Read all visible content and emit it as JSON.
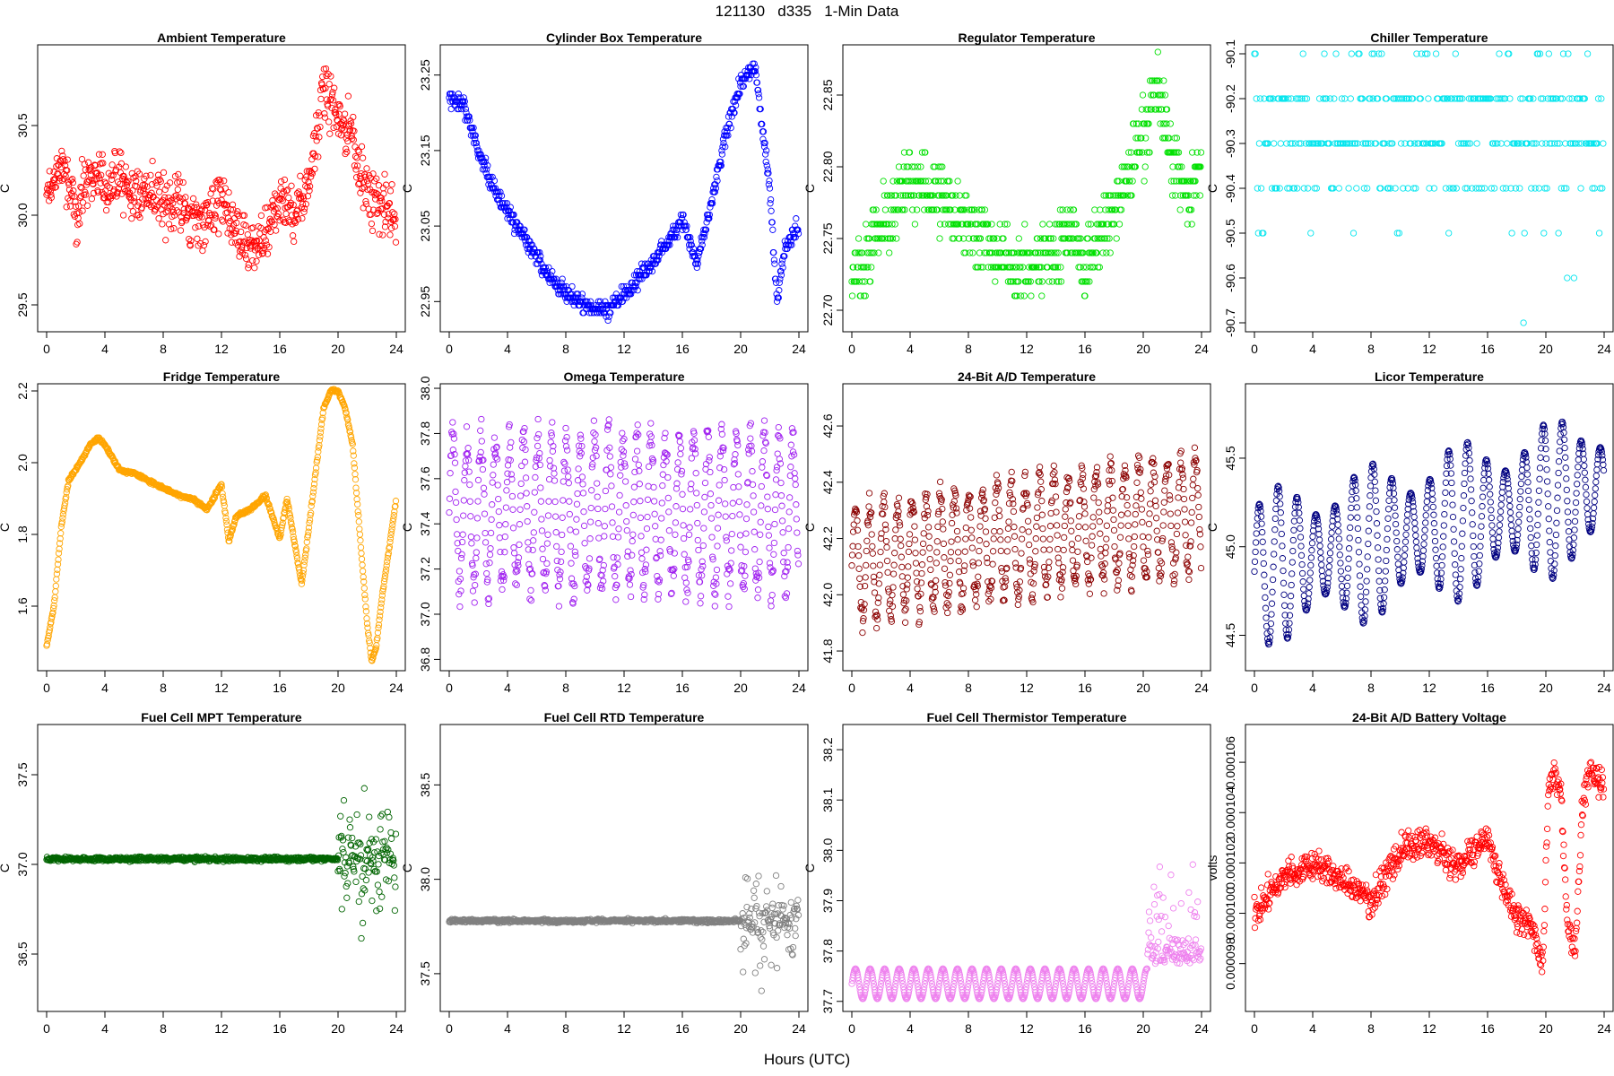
{
  "figure": {
    "suptitle": "121130   d335   1-Min Data",
    "xlabel": "Hours (UTC)"
  },
  "chart_data": [
    {
      "type": "scatter",
      "title": "Ambient Temperature",
      "ylabel": "C",
      "color": "#ff0000",
      "ylim": [
        29.35,
        30.95
      ],
      "yticks": [
        29.5,
        30.0,
        30.5
      ],
      "xlim": [
        0,
        24
      ],
      "xticks": [
        0,
        4,
        8,
        12,
        16,
        20,
        24
      ],
      "kind": "noisy",
      "x": [
        0,
        1,
        2,
        3,
        4,
        5,
        6,
        7,
        8,
        9,
        10,
        11,
        12,
        13,
        14,
        15,
        16,
        17,
        18,
        19,
        20,
        21,
        22,
        23,
        24
      ],
      "values": [
        30.1,
        30.3,
        30.0,
        30.25,
        30.15,
        30.2,
        30.1,
        30.15,
        30.05,
        30.1,
        29.95,
        30.0,
        30.1,
        29.9,
        29.8,
        29.85,
        30.1,
        30.0,
        30.2,
        30.7,
        30.55,
        30.45,
        30.1,
        30.05,
        30.0
      ],
      "spread": 0.22
    },
    {
      "type": "scatter",
      "title": "Cylinder Box Temperature",
      "ylabel": "C",
      "color": "#0000ff",
      "ylim": [
        22.91,
        23.29
      ],
      "yticks": [
        22.95,
        23.05,
        23.15,
        23.25
      ],
      "xlim": [
        0,
        24
      ],
      "xticks": [
        0,
        4,
        8,
        12,
        16,
        20,
        24
      ],
      "kind": "dense",
      "x": [
        0,
        1,
        2,
        3,
        4,
        5,
        6,
        7,
        8,
        9,
        10,
        11,
        12,
        13,
        14,
        15,
        16,
        17,
        18,
        19,
        20,
        21,
        22,
        22.5,
        23,
        24
      ],
      "values": [
        23.22,
        23.21,
        23.15,
        23.1,
        23.07,
        23.04,
        23.01,
        22.98,
        22.96,
        22.95,
        22.94,
        22.94,
        22.96,
        22.98,
        23.0,
        23.03,
        23.06,
        23.0,
        23.08,
        23.17,
        23.24,
        23.26,
        23.1,
        22.95,
        23.02,
        23.05
      ],
      "spread": 0.01
    },
    {
      "type": "scatter",
      "title": "Regulator Temperature",
      "ylabel": "C",
      "color": "#00e000",
      "ylim": [
        22.685,
        22.885
      ],
      "yticks": [
        22.7,
        22.75,
        22.8,
        22.85
      ],
      "xlim": [
        0,
        24
      ],
      "xticks": [
        0,
        4,
        8,
        12,
        16,
        20,
        24
      ],
      "kind": "quantized",
      "step": 0.01,
      "x": [
        0,
        2,
        4,
        6,
        8,
        10,
        12,
        14,
        15,
        16,
        18,
        20,
        21,
        22,
        23,
        24
      ],
      "values": [
        22.72,
        22.76,
        22.79,
        22.78,
        22.76,
        22.74,
        22.73,
        22.74,
        22.76,
        22.73,
        22.77,
        22.82,
        22.86,
        22.8,
        22.78,
        22.8
      ],
      "spread": 0.02
    },
    {
      "type": "scatter",
      "title": "Chiller Temperature",
      "ylabel": "C",
      "color": "#00e5ee",
      "ylim": [
        -90.72,
        -90.08
      ],
      "yticks": [
        -90.7,
        -90.6,
        -90.5,
        -90.4,
        -90.3,
        -90.2,
        -90.1
      ],
      "xlim": [
        0,
        24
      ],
      "xticks": [
        0,
        4,
        8,
        12,
        16,
        20,
        24
      ],
      "kind": "levels",
      "levels": [
        -90.1,
        -90.2,
        -90.3,
        -90.4,
        -90.5,
        -90.6,
        -90.7
      ],
      "weights": [
        0.06,
        0.3,
        0.42,
        0.15,
        0.04,
        0.02,
        0.01
      ]
    },
    {
      "type": "scatter",
      "title": "Fridge Temperature",
      "ylabel": "C",
      "color": "#ffa500",
      "ylim": [
        1.42,
        2.22
      ],
      "yticks": [
        1.6,
        1.8,
        2.0,
        2.2
      ],
      "xlim": [
        0,
        24
      ],
      "xticks": [
        0,
        4,
        8,
        12,
        16,
        20,
        24
      ],
      "kind": "smooth",
      "x": [
        0,
        0.5,
        1,
        1.5,
        2,
        3,
        3.5,
        4,
        5,
        6,
        7,
        8,
        9,
        10,
        11,
        12,
        12.5,
        13,
        14,
        15,
        16,
        16.5,
        17,
        17.5,
        18,
        19,
        19.5,
        20,
        20.5,
        21,
        21.5,
        22,
        22.3,
        22.6,
        23,
        24
      ],
      "values": [
        1.49,
        1.6,
        1.82,
        1.95,
        1.98,
        2.05,
        2.07,
        2.05,
        1.98,
        1.97,
        1.95,
        1.93,
        1.91,
        1.9,
        1.87,
        1.94,
        1.78,
        1.85,
        1.87,
        1.91,
        1.79,
        1.9,
        1.78,
        1.66,
        1.82,
        2.15,
        2.2,
        2.2,
        2.15,
        2.05,
        1.8,
        1.55,
        1.45,
        1.48,
        1.62,
        1.9
      ]
    },
    {
      "type": "scatter",
      "title": "Omega Temperature",
      "ylabel": "C",
      "color": "#a020f0",
      "ylim": [
        36.75,
        38.02
      ],
      "yticks": [
        36.8,
        37.0,
        37.2,
        37.4,
        37.6,
        37.8,
        38.0
      ],
      "xlim": [
        0,
        24
      ],
      "xticks": [
        0,
        4,
        8,
        12,
        16,
        20,
        24
      ],
      "kind": "oscillate",
      "center": 37.45,
      "amp": 0.42,
      "period": 1.0
    },
    {
      "type": "scatter",
      "title": "24-Bit A/D Temperature",
      "ylabel": "C",
      "color": "#8b0000",
      "ylim": [
        41.73,
        42.75
      ],
      "yticks": [
        41.8,
        42.0,
        42.2,
        42.4,
        42.6
      ],
      "xlim": [
        0,
        24
      ],
      "xticks": [
        0,
        4,
        8,
        12,
        16,
        20,
        24
      ],
      "kind": "oscillate",
      "center": 42.2,
      "amp": 0.25,
      "period": 1.0,
      "trend": 0.008
    },
    {
      "type": "scatter",
      "title": "Licor Temperature",
      "ylabel": "C",
      "color": "#000080",
      "ylim": [
        44.3,
        45.92
      ],
      "yticks": [
        44.5,
        45.0,
        45.5
      ],
      "xlim": [
        0,
        24
      ],
      "xticks": [
        0,
        4,
        8,
        12,
        16,
        20,
        24
      ],
      "kind": "sine",
      "center": 45.1,
      "amp": 0.45,
      "period": 1.3,
      "trend": 0.02
    },
    {
      "type": "scatter",
      "title": "Fuel Cell MPT Temperature",
      "ylabel": "C",
      "color": "#006400",
      "ylim": [
        36.18,
        37.78
      ],
      "yticks": [
        36.5,
        37.0,
        37.5
      ],
      "xlim": [
        0,
        24
      ],
      "xticks": [
        0,
        4,
        8,
        12,
        16,
        20,
        24
      ],
      "kind": "flatburst",
      "base": 37.03,
      "spread": 0.01,
      "burst_start": 20,
      "burst_spread": 0.35
    },
    {
      "type": "scatter",
      "title": "Fuel Cell RTD Temperature",
      "ylabel": "C",
      "color": "#808080",
      "ylim": [
        37.3,
        38.82
      ],
      "yticks": [
        37.5,
        38.0,
        38.5
      ],
      "xlim": [
        0,
        24
      ],
      "xticks": [
        0,
        4,
        8,
        12,
        16,
        20,
        24
      ],
      "kind": "flatburst",
      "base": 37.78,
      "spread": 0.008,
      "burst_start": 20,
      "burst_spread": 0.25
    },
    {
      "type": "scatter",
      "title": "Fuel Cell Thermistor Temperature",
      "ylabel": "C",
      "color": "#ee82ee",
      "ylim": [
        37.68,
        38.25
      ],
      "yticks": [
        37.7,
        37.8,
        37.9,
        38.0,
        38.1,
        38.2
      ],
      "xlim": [
        0,
        24
      ],
      "xticks": [
        0,
        4,
        8,
        12,
        16,
        20,
        24
      ],
      "kind": "sineburst",
      "center": 37.735,
      "amp": 0.03,
      "period": 1.0,
      "burst_start": 20.3,
      "burst_spread": 0.15
    },
    {
      "type": "scatter",
      "title": "24-Bit A/D Battery Voltage",
      "ylabel": "volts",
      "color": "#ff0000",
      "ylim": [
        9.61e-05,
        0.0001075
      ],
      "yticks": [
        9.8e-05,
        0.0001,
        0.000102,
        0.000104,
        0.000106
      ],
      "yticklabels": [
        "0.000098",
        "0.000100",
        "0.000102",
        "0.000104",
        "0.000106"
      ],
      "xlim": [
        0,
        24
      ],
      "xticks": [
        0,
        4,
        8,
        12,
        16,
        20,
        24
      ],
      "kind": "noisy",
      "x": [
        0,
        2,
        4,
        6,
        8,
        10,
        12,
        14,
        16,
        17,
        18,
        19,
        19.8,
        20.2,
        21,
        21.5,
        22,
        22.5,
        23,
        23.5,
        24
      ],
      "values": [
        0.0001,
        0.0001015,
        0.000102,
        0.0001013,
        0.0001005,
        0.0001025,
        0.0001028,
        0.0001018,
        0.000103,
        0.0001012,
        9.98e-05,
        9.95e-05,
        9.8e-05,
        0.0001055,
        0.000105,
        9.95e-05,
        9.85e-05,
        0.000104,
        0.0001058,
        0.0001053,
        0.000105
      ],
      "spread": 9e-07
    }
  ]
}
